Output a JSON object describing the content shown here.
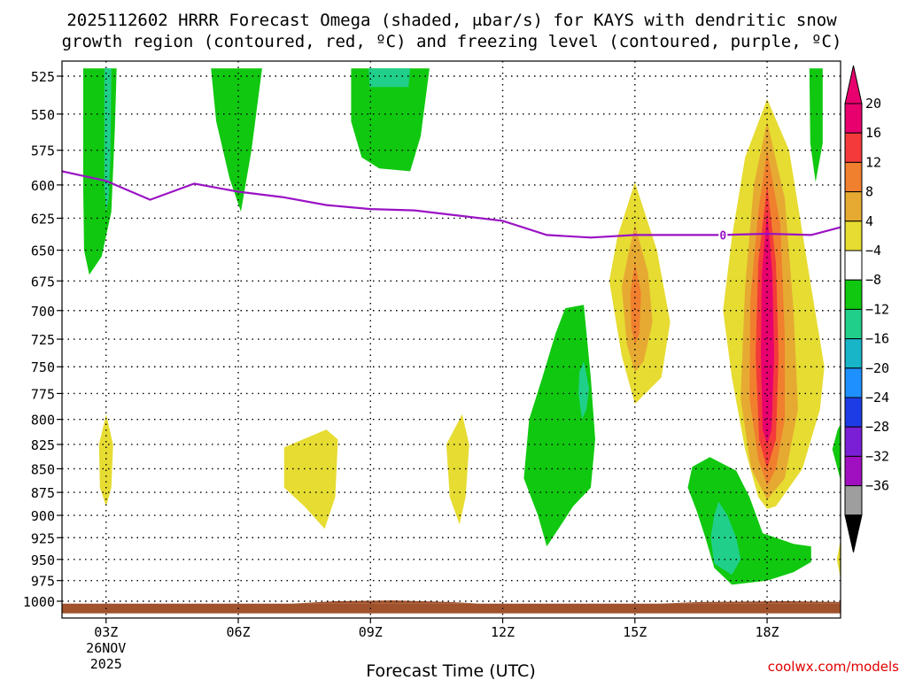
{
  "chart_data": {
    "type": "contour",
    "title_line1": "2025112602 HRRR Forecast Omega (shaded, μbar/s) for KAYS with dendritic snow",
    "title_line2": "growth region (contoured, red, ºC) and freezing level (contoured, purple, ºC)",
    "xlabel": "Forecast Time (UTC)",
    "credit": "coolwx.com/models",
    "x_range": [
      2.0,
      19.667
    ],
    "x_ticks": [
      {
        "x": 3,
        "label": "03Z",
        "sub1": "26NOV",
        "sub2": "2025"
      },
      {
        "x": 6,
        "label": "06Z"
      },
      {
        "x": 9,
        "label": "09Z"
      },
      {
        "x": 12,
        "label": "12Z"
      },
      {
        "x": 15,
        "label": "15Z"
      },
      {
        "x": 18,
        "label": "18Z"
      }
    ],
    "y_ticks": [
      525,
      550,
      575,
      600,
      625,
      650,
      675,
      700,
      725,
      750,
      775,
      800,
      825,
      850,
      875,
      900,
      925,
      950,
      975,
      1000
    ],
    "y_tick_labels": [
      "525",
      "550",
      "575",
      "600",
      "625",
      "650",
      "675",
      "700",
      "725",
      "750",
      "775",
      "800",
      "825",
      "850",
      "875",
      "900",
      "925",
      "950",
      "975",
      "1000"
    ],
    "colorbar": {
      "labels": [
        "20",
        "16",
        "12",
        "8",
        "4",
        "−4",
        "−8",
        "−12",
        "−16",
        "−20",
        "−24",
        "−28",
        "−32",
        "−36"
      ],
      "colors": [
        "#e8006e",
        "#f43a3a",
        "#f07f2e",
        "#e6aa32",
        "#e6dc32",
        "#ffffff",
        "#10c810",
        "#20cf8a",
        "#18b4c8",
        "#1e90ff",
        "#1e3ce6",
        "#7a1fd6",
        "#a010c0",
        "#9e9e9e"
      ],
      "top_arrow_color": "#e8006e",
      "bottom_arrow_color": "#000000"
    },
    "freezing_level": {
      "label": "0",
      "color": "#9a12c4",
      "points": [
        [
          2.0,
          590
        ],
        [
          3.0,
          597
        ],
        [
          4.0,
          611
        ],
        [
          5.0,
          599
        ],
        [
          6.0,
          605
        ],
        [
          7.0,
          609
        ],
        [
          8.0,
          615
        ],
        [
          9.0,
          618
        ],
        [
          10.0,
          619
        ],
        [
          11.0,
          623
        ],
        [
          12.0,
          627
        ],
        [
          13.0,
          638
        ],
        [
          14.0,
          640
        ],
        [
          15.0,
          638
        ],
        [
          16.0,
          638
        ],
        [
          17.0,
          638
        ],
        [
          18.0,
          637
        ],
        [
          19.0,
          638
        ],
        [
          19.667,
          632
        ]
      ]
    },
    "omega_regions": [
      {
        "color": "#10c810",
        "points": [
          [
            2.48,
            520
          ],
          [
            3.24,
            520
          ],
          [
            3.2,
            560
          ],
          [
            3.12,
            620
          ],
          [
            2.9,
            655
          ],
          [
            2.62,
            670
          ],
          [
            2.5,
            650
          ],
          [
            2.48,
            600
          ]
        ]
      },
      {
        "color": "#20cf8a",
        "points": [
          [
            2.96,
            520
          ],
          [
            3.12,
            520
          ],
          [
            3.1,
            580
          ],
          [
            3.06,
            610
          ],
          [
            3.0,
            620
          ],
          [
            2.96,
            600
          ]
        ]
      },
      {
        "color": "#10c810",
        "points": [
          [
            5.38,
            520
          ],
          [
            6.54,
            520
          ],
          [
            6.3,
            575
          ],
          [
            6.06,
            620
          ],
          [
            5.8,
            595
          ],
          [
            5.5,
            555
          ]
        ]
      },
      {
        "color": "#10c810",
        "points": [
          [
            8.56,
            520
          ],
          [
            10.34,
            520
          ],
          [
            10.14,
            565
          ],
          [
            9.9,
            590
          ],
          [
            9.2,
            588
          ],
          [
            8.8,
            580
          ],
          [
            8.56,
            555
          ]
        ]
      },
      {
        "color": "#20cf8a",
        "points": [
          [
            8.96,
            520
          ],
          [
            9.9,
            520
          ],
          [
            9.86,
            532
          ],
          [
            8.98,
            532
          ]
        ]
      },
      {
        "color": "#e6dc32",
        "points": [
          [
            3.0,
            795
          ],
          [
            3.16,
            825
          ],
          [
            3.12,
            870
          ],
          [
            3.0,
            890
          ],
          [
            2.86,
            870
          ],
          [
            2.84,
            825
          ]
        ]
      },
      {
        "color": "#e6dc32",
        "points": [
          [
            7.04,
            828
          ],
          [
            8.0,
            810
          ],
          [
            8.26,
            820
          ],
          [
            8.2,
            880
          ],
          [
            7.96,
            915
          ],
          [
            7.5,
            890
          ],
          [
            7.04,
            870
          ]
        ]
      },
      {
        "color": "#e6dc32",
        "points": [
          [
            11.08,
            795
          ],
          [
            11.24,
            825
          ],
          [
            11.16,
            880
          ],
          [
            11.02,
            910
          ],
          [
            10.8,
            880
          ],
          [
            10.72,
            825
          ]
        ]
      },
      {
        "color": "#10c810",
        "points": [
          [
            13.42,
            698
          ],
          [
            13.84,
            695
          ],
          [
            14.0,
            760
          ],
          [
            14.1,
            820
          ],
          [
            14.0,
            870
          ],
          [
            13.6,
            890
          ],
          [
            13.2,
            920
          ],
          [
            13.0,
            935
          ],
          [
            12.8,
            900
          ],
          [
            12.48,
            860
          ],
          [
            12.6,
            800
          ],
          [
            12.9,
            760
          ],
          [
            13.2,
            720
          ]
        ]
      },
      {
        "color": "#20cf8a",
        "points": [
          [
            13.84,
            745
          ],
          [
            13.96,
            770
          ],
          [
            13.9,
            790
          ],
          [
            13.8,
            800
          ],
          [
            13.72,
            775
          ],
          [
            13.74,
            755
          ]
        ]
      },
      {
        "color": "#e6dc32",
        "points": [
          [
            15.0,
            598
          ],
          [
            15.5,
            650
          ],
          [
            15.8,
            710
          ],
          [
            15.6,
            760
          ],
          [
            15.0,
            785
          ],
          [
            14.7,
            740
          ],
          [
            14.42,
            675
          ],
          [
            14.6,
            640
          ]
        ]
      },
      {
        "color": "#e6aa32",
        "points": [
          [
            15.0,
            630
          ],
          [
            15.3,
            668
          ],
          [
            15.4,
            710
          ],
          [
            15.2,
            745
          ],
          [
            15.0,
            755
          ],
          [
            14.82,
            730
          ],
          [
            14.7,
            680
          ],
          [
            14.84,
            655
          ]
        ]
      },
      {
        "color": "#f07f2e",
        "points": [
          [
            15.0,
            660
          ],
          [
            15.14,
            685
          ],
          [
            15.1,
            720
          ],
          [
            15.0,
            730
          ],
          [
            14.92,
            715
          ],
          [
            14.9,
            685
          ]
        ]
      },
      {
        "color": "#e6dc32",
        "points": [
          [
            18.0,
            540
          ],
          [
            18.5,
            575
          ],
          [
            19.0,
            680
          ],
          [
            19.3,
            750
          ],
          [
            19.2,
            790
          ],
          [
            18.8,
            850
          ],
          [
            18.2,
            890
          ],
          [
            18.0,
            893
          ],
          [
            17.8,
            880
          ],
          [
            17.5,
            830
          ],
          [
            17.2,
            760
          ],
          [
            17.0,
            700
          ],
          [
            17.2,
            640
          ],
          [
            17.5,
            580
          ]
        ]
      },
      {
        "color": "#e6aa32",
        "points": [
          [
            18.0,
            555
          ],
          [
            18.4,
            610
          ],
          [
            18.6,
            700
          ],
          [
            18.7,
            790
          ],
          [
            18.4,
            860
          ],
          [
            18.0,
            883
          ],
          [
            17.64,
            850
          ],
          [
            17.4,
            780
          ],
          [
            17.5,
            680
          ],
          [
            17.7,
            600
          ]
        ]
      },
      {
        "color": "#f07f2e",
        "points": [
          [
            18.0,
            575
          ],
          [
            18.3,
            630
          ],
          [
            18.4,
            720
          ],
          [
            18.4,
            800
          ],
          [
            18.2,
            850
          ],
          [
            18.0,
            868
          ],
          [
            17.8,
            840
          ],
          [
            17.6,
            780
          ],
          [
            17.62,
            690
          ],
          [
            17.8,
            620
          ]
        ]
      },
      {
        "color": "#f43a3a",
        "points": [
          [
            18.0,
            600
          ],
          [
            18.2,
            660
          ],
          [
            18.26,
            740
          ],
          [
            18.2,
            820
          ],
          [
            18.0,
            850
          ],
          [
            17.82,
            820
          ],
          [
            17.74,
            740
          ],
          [
            17.8,
            660
          ]
        ]
      },
      {
        "color": "#e8006e",
        "points": [
          [
            18.0,
            620
          ],
          [
            18.12,
            670
          ],
          [
            18.16,
            740
          ],
          [
            18.1,
            810
          ],
          [
            18.0,
            825
          ],
          [
            17.9,
            810
          ],
          [
            17.86,
            740
          ],
          [
            17.88,
            670
          ]
        ]
      },
      {
        "color": "#10c810",
        "points": [
          [
            16.7,
            838
          ],
          [
            17.3,
            852
          ],
          [
            17.6,
            880
          ],
          [
            17.9,
            920
          ],
          [
            18.6,
            932
          ],
          [
            19.0,
            935
          ],
          [
            19.0,
            953
          ],
          [
            18.6,
            965
          ],
          [
            18.0,
            975
          ],
          [
            17.2,
            980
          ],
          [
            16.8,
            960
          ],
          [
            16.6,
            925
          ],
          [
            16.4,
            895
          ],
          [
            16.2,
            870
          ],
          [
            16.3,
            848
          ]
        ]
      },
      {
        "color": "#20cf8a",
        "points": [
          [
            16.9,
            885
          ],
          [
            17.1,
            900
          ],
          [
            17.3,
            925
          ],
          [
            17.4,
            950
          ],
          [
            17.2,
            968
          ],
          [
            16.8,
            955
          ],
          [
            16.72,
            925
          ],
          [
            16.8,
            900
          ]
        ]
      },
      {
        "color": "#10c810",
        "points": [
          [
            18.96,
            520
          ],
          [
            19.26,
            520
          ],
          [
            19.26,
            570
          ],
          [
            19.1,
            598
          ],
          [
            18.98,
            570
          ]
        ]
      },
      {
        "color": "#10c810",
        "points": [
          [
            19.667,
            805
          ],
          [
            19.667,
            862
          ],
          [
            19.48,
            830
          ],
          [
            19.6,
            810
          ]
        ]
      },
      {
        "color": "#e6dc32",
        "points": [
          [
            19.667,
            928
          ],
          [
            19.667,
            972
          ],
          [
            19.58,
            950
          ]
        ]
      }
    ],
    "ground_regions": [
      {
        "color": "#a0522d",
        "points": [
          [
            2.0,
            1003
          ],
          [
            19.667,
            1003
          ],
          [
            19.667,
            1015
          ],
          [
            2.0,
            1015
          ]
        ]
      },
      {
        "color": "#a0522d",
        "points": [
          [
            7.2,
            1003
          ],
          [
            8.2,
            1000
          ],
          [
            9.5,
            999
          ],
          [
            10.8,
            1001
          ],
          [
            11.5,
            1003
          ]
        ]
      },
      {
        "color": "#a0522d",
        "points": [
          [
            15.5,
            1003
          ],
          [
            16.5,
            1001
          ],
          [
            18.4,
            1000
          ],
          [
            19.667,
            1001
          ],
          [
            19.667,
            1003
          ]
        ]
      }
    ]
  }
}
